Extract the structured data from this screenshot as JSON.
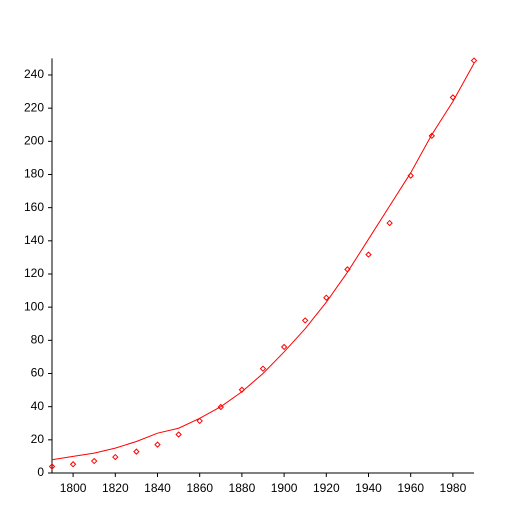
{
  "chart_data": {
    "type": "scatter",
    "x": [
      1790,
      1800,
      1810,
      1820,
      1830,
      1840,
      1850,
      1860,
      1870,
      1880,
      1890,
      1900,
      1910,
      1920,
      1930,
      1940,
      1950,
      1960,
      1970,
      1980,
      1990
    ],
    "series": [
      {
        "kind": "points",
        "color": "#ff0000",
        "values": [
          3.9,
          5.3,
          7.2,
          9.6,
          12.9,
          17.1,
          23.2,
          31.4,
          39.8,
          50.2,
          62.9,
          76.0,
          92.0,
          105.7,
          122.8,
          131.7,
          150.7,
          179.3,
          203.3,
          226.5,
          248.7
        ]
      },
      {
        "kind": "line",
        "color": "#ff0000",
        "values": [
          8,
          10,
          12,
          15,
          19,
          24,
          27,
          33,
          40,
          49,
          60,
          73,
          87,
          103,
          121,
          141,
          161,
          181,
          204,
          224,
          247
        ]
      }
    ],
    "xlim": [
      1790,
      1990
    ],
    "ylim": [
      0,
      250
    ],
    "xticks": [
      1800,
      1820,
      1840,
      1860,
      1880,
      1900,
      1920,
      1940,
      1960,
      1980
    ],
    "yticks": [
      0,
      20,
      40,
      60,
      80,
      100,
      120,
      140,
      160,
      180,
      200,
      220,
      240
    ]
  }
}
